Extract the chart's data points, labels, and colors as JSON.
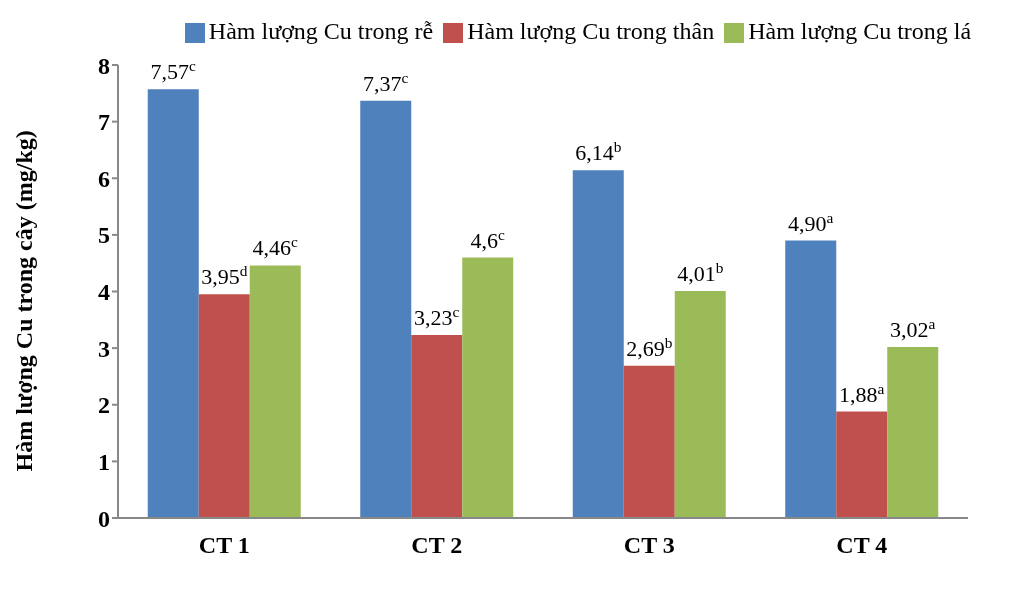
{
  "chart_data": {
    "type": "bar",
    "ylabel": "Hàm lượng Cu trong cây (mg/kg)",
    "categories": [
      "CT 1",
      "CT 2",
      "CT 3",
      "CT 4"
    ],
    "series": [
      {
        "name": "Hàm lượng Cu trong rễ",
        "color": "#4f81bd",
        "values": [
          7.57,
          7.37,
          6.14,
          4.9
        ],
        "value_labels": [
          "7,57$^{c}$",
          "7,37$^{c}$",
          "6,14$^{b}$",
          "4,90$^{a}$"
        ]
      },
      {
        "name": "Hàm lượng Cu trong thân",
        "color": "#c0504d",
        "values": [
          3.95,
          3.23,
          2.69,
          1.88
        ],
        "value_labels": [
          "3,95$^{d}$",
          "3,23$^{c}$",
          "2,69$^{b}$",
          "1,88$^{a}$"
        ]
      },
      {
        "name": "Hàm lượng Cu trong lá",
        "color": "#9bbb59",
        "values": [
          4.46,
          4.6,
          4.01,
          3.02
        ],
        "value_labels": [
          "4,46$^{c}$",
          "4,6$^{c}$",
          "4,01$^{b}$",
          "3,02$^{a}$"
        ]
      }
    ],
    "ylim": [
      0,
      8
    ],
    "yticks": [
      0,
      1,
      2,
      3,
      4,
      5,
      6,
      7,
      8
    ],
    "grid": false,
    "legend": "top"
  }
}
